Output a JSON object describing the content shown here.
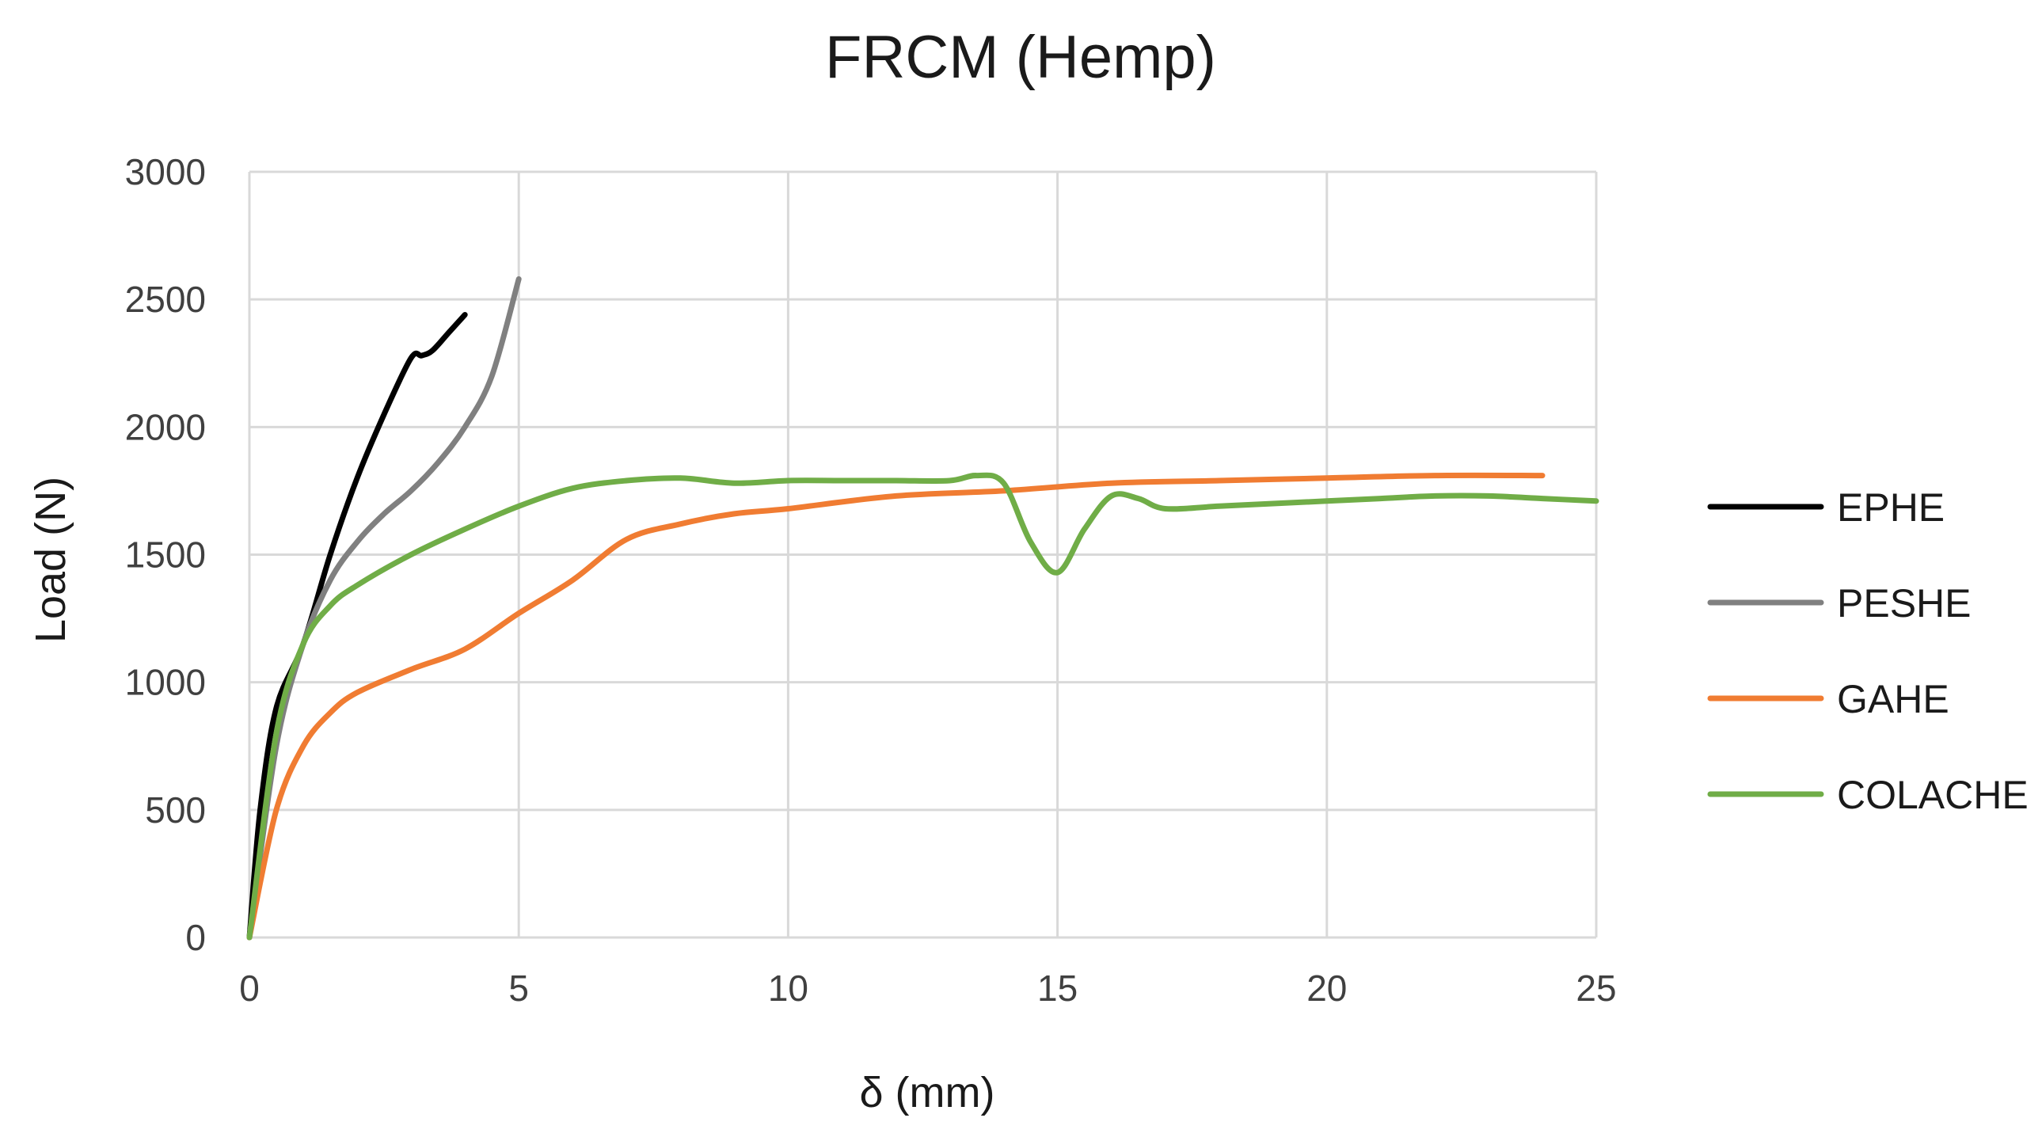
{
  "chart_data": {
    "type": "line",
    "title": "FRCM (Hemp)",
    "xlabel": "δ (mm)",
    "ylabel": "Load (N)",
    "xlim": [
      0,
      25
    ],
    "ylim": [
      0,
      3000
    ],
    "xticks": [
      "0",
      "5",
      "10",
      "15",
      "20",
      "25"
    ],
    "yticks": [
      "0",
      "500",
      "1000",
      "1500",
      "2000",
      "2500",
      "3000"
    ],
    "grid": true,
    "legend_position": "right",
    "series": [
      {
        "name": "EPHE",
        "color": "#000000",
        "points": [
          [
            0,
            0
          ],
          [
            0.2,
            500
          ],
          [
            0.5,
            900
          ],
          [
            1,
            1150
          ],
          [
            1.5,
            1500
          ],
          [
            2,
            1800
          ],
          [
            2.5,
            2050
          ],
          [
            3,
            2270
          ],
          [
            3.2,
            2280
          ],
          [
            3.4,
            2300
          ],
          [
            3.7,
            2370
          ],
          [
            4,
            2440
          ]
        ]
      },
      {
        "name": "PESHE",
        "color": "#808080",
        "points": [
          [
            0,
            0
          ],
          [
            0.5,
            750
          ],
          [
            1,
            1150
          ],
          [
            1.5,
            1400
          ],
          [
            2,
            1550
          ],
          [
            2.5,
            1660
          ],
          [
            3,
            1750
          ],
          [
            3.5,
            1860
          ],
          [
            4,
            2000
          ],
          [
            4.5,
            2200
          ],
          [
            5,
            2580
          ]
        ]
      },
      {
        "name": "GAHE",
        "color": "#f07c32",
        "points": [
          [
            0,
            0
          ],
          [
            0.5,
            500
          ],
          [
            1,
            750
          ],
          [
            1.5,
            880
          ],
          [
            2,
            960
          ],
          [
            3,
            1050
          ],
          [
            4,
            1130
          ],
          [
            5,
            1270
          ],
          [
            6,
            1400
          ],
          [
            7,
            1560
          ],
          [
            8,
            1620
          ],
          [
            9,
            1660
          ],
          [
            10,
            1680
          ],
          [
            12,
            1730
          ],
          [
            14,
            1750
          ],
          [
            16,
            1780
          ],
          [
            18,
            1790
          ],
          [
            20,
            1800
          ],
          [
            22,
            1810
          ],
          [
            24,
            1810
          ]
        ]
      },
      {
        "name": "COLACHE",
        "color": "#70ad47",
        "points": [
          [
            0,
            0
          ],
          [
            0.5,
            800
          ],
          [
            1,
            1150
          ],
          [
            1.5,
            1300
          ],
          [
            2,
            1380
          ],
          [
            3,
            1500
          ],
          [
            4,
            1600
          ],
          [
            5,
            1690
          ],
          [
            6,
            1760
          ],
          [
            7,
            1790
          ],
          [
            8,
            1800
          ],
          [
            9,
            1780
          ],
          [
            10,
            1790
          ],
          [
            11,
            1790
          ],
          [
            12,
            1790
          ],
          [
            13,
            1790
          ],
          [
            13.5,
            1810
          ],
          [
            14,
            1780
          ],
          [
            14.5,
            1550
          ],
          [
            15,
            1430
          ],
          [
            15.5,
            1600
          ],
          [
            16,
            1730
          ],
          [
            16.5,
            1720
          ],
          [
            17,
            1680
          ],
          [
            18,
            1690
          ],
          [
            19,
            1700
          ],
          [
            20,
            1710
          ],
          [
            21,
            1720
          ],
          [
            22,
            1730
          ],
          [
            23,
            1730
          ],
          [
            24,
            1720
          ],
          [
            25,
            1710
          ]
        ]
      }
    ]
  }
}
